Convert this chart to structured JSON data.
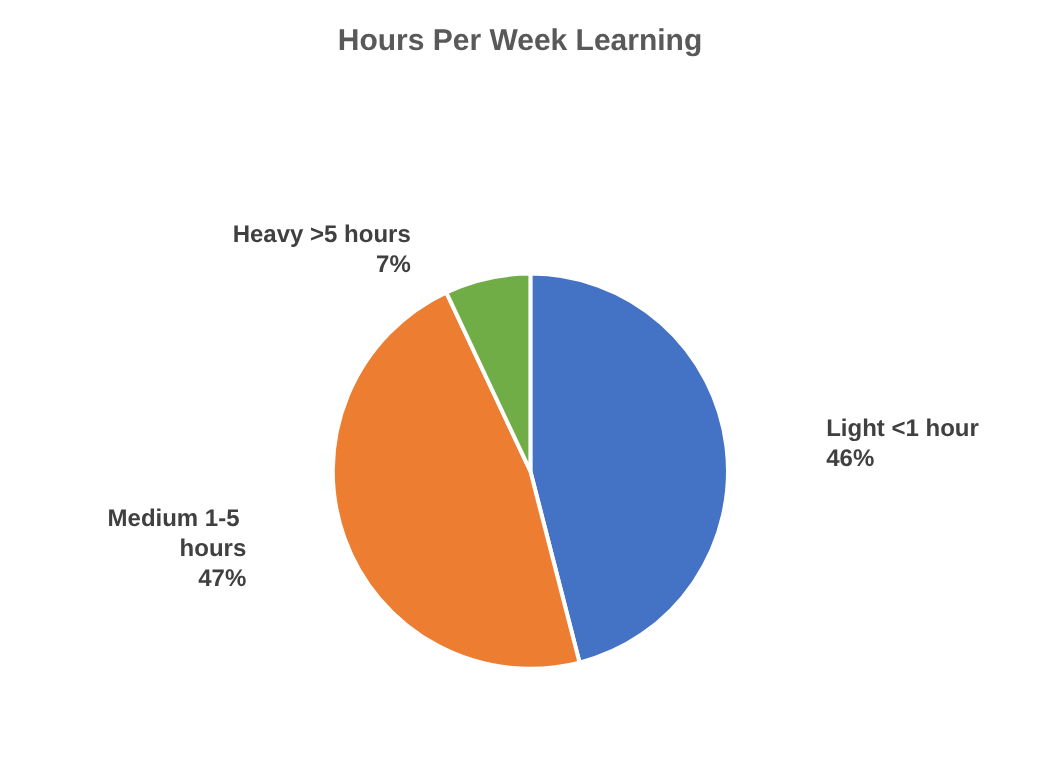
{
  "chart_data": {
    "type": "pie",
    "title": "Hours Per Week Learning",
    "categories": [
      "Light <1 hour",
      "Medium 1-5 hours",
      "Heavy >5 hours"
    ],
    "values": [
      46,
      47,
      7
    ],
    "value_labels": [
      "46%",
      "47%",
      "7%"
    ],
    "colors": [
      "#4472c4",
      "#ed7d31",
      "#70ad47"
    ],
    "legend": false
  }
}
